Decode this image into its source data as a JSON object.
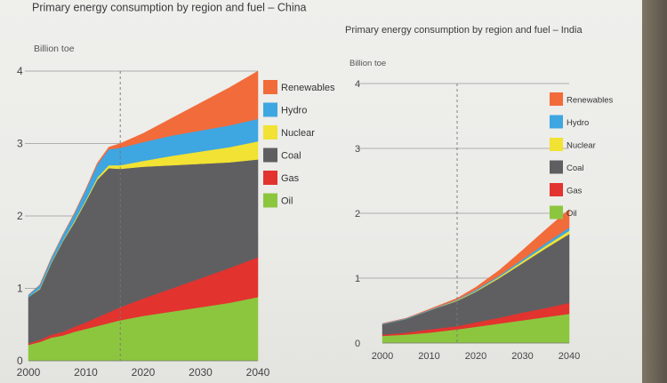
{
  "chart_data": [
    {
      "type": "area",
      "title": "Primary energy consumption by region and fuel – China",
      "ylabel": "Billion toe",
      "x": [
        2000,
        2002,
        2004,
        2006,
        2008,
        2010,
        2012,
        2014,
        2016,
        2020,
        2025,
        2030,
        2035,
        2040
      ],
      "xticks": [
        2000,
        2010,
        2020,
        2030,
        2040
      ],
      "yticks": [
        0,
        1,
        2,
        3,
        4
      ],
      "ylim": [
        0,
        4
      ],
      "divider_year": 2016,
      "stacked": true,
      "series": [
        {
          "name": "Oil",
          "color": "#8cc63f",
          "values": [
            0.22,
            0.26,
            0.32,
            0.35,
            0.4,
            0.44,
            0.48,
            0.52,
            0.56,
            0.62,
            0.68,
            0.74,
            0.8,
            0.88
          ]
        },
        {
          "name": "Gas",
          "color": "#e2332f",
          "values": [
            0.02,
            0.03,
            0.04,
            0.05,
            0.07,
            0.09,
            0.12,
            0.15,
            0.18,
            0.24,
            0.32,
            0.4,
            0.48,
            0.55
          ]
        },
        {
          "name": "Coal",
          "color": "#5f5f62",
          "values": [
            0.64,
            0.7,
            0.99,
            1.25,
            1.44,
            1.67,
            1.9,
            1.99,
            1.91,
            1.82,
            1.7,
            1.58,
            1.46,
            1.35
          ]
        },
        {
          "name": "Nuclear",
          "color": "#f1e233",
          "values": [
            0.0,
            0.01,
            0.01,
            0.01,
            0.02,
            0.02,
            0.03,
            0.04,
            0.05,
            0.08,
            0.13,
            0.17,
            0.21,
            0.25
          ]
        },
        {
          "name": "Hydro",
          "color": "#3ea6e1",
          "values": [
            0.03,
            0.05,
            0.06,
            0.08,
            0.1,
            0.14,
            0.18,
            0.22,
            0.24,
            0.26,
            0.28,
            0.29,
            0.3,
            0.31
          ]
        },
        {
          "name": "Renewables",
          "color": "#f26b3a",
          "values": [
            0.0,
            0.0,
            0.0,
            0.0,
            0.01,
            0.01,
            0.02,
            0.03,
            0.06,
            0.12,
            0.24,
            0.38,
            0.52,
            0.66
          ]
        }
      ]
    },
    {
      "type": "area",
      "title": "Primary energy consumption by region and fuel – India",
      "ylabel": "Billion toe",
      "x": [
        2000,
        2005,
        2010,
        2016,
        2020,
        2025,
        2030,
        2035,
        2040
      ],
      "xticks": [
        2000,
        2010,
        2020,
        2030,
        2040
      ],
      "yticks": [
        0,
        1,
        2,
        3,
        4
      ],
      "ylim": [
        0,
        4
      ],
      "divider_year": 2016,
      "stacked": true,
      "series": [
        {
          "name": "Oil",
          "color": "#8cc63f",
          "values": [
            0.11,
            0.13,
            0.16,
            0.21,
            0.25,
            0.3,
            0.35,
            0.4,
            0.45
          ]
        },
        {
          "name": "Gas",
          "color": "#e2332f",
          "values": [
            0.02,
            0.03,
            0.05,
            0.05,
            0.07,
            0.09,
            0.12,
            0.14,
            0.17
          ]
        },
        {
          "name": "Coal",
          "color": "#5f5f62",
          "values": [
            0.16,
            0.21,
            0.29,
            0.39,
            0.47,
            0.61,
            0.76,
            0.92,
            1.06
          ]
        },
        {
          "name": "Nuclear",
          "color": "#f1e233",
          "values": [
            0.0,
            0.0,
            0.0,
            0.01,
            0.01,
            0.02,
            0.03,
            0.04,
            0.05
          ]
        },
        {
          "name": "Hydro",
          "color": "#3ea6e1",
          "values": [
            0.01,
            0.01,
            0.01,
            0.01,
            0.02,
            0.02,
            0.03,
            0.04,
            0.05
          ]
        },
        {
          "name": "Renewables",
          "color": "#f26b3a",
          "values": [
            0.0,
            0.0,
            0.01,
            0.02,
            0.04,
            0.08,
            0.14,
            0.21,
            0.28
          ]
        }
      ]
    }
  ]
}
